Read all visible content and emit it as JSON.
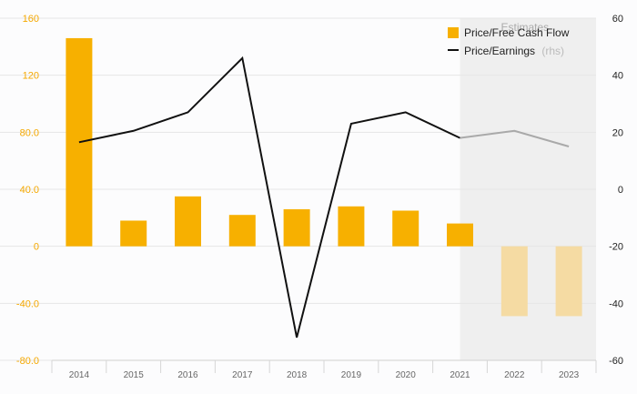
{
  "chart_data": {
    "type": "bar",
    "categories": [
      "2014",
      "2015",
      "2016",
      "2017",
      "2018",
      "2019",
      "2020",
      "2021",
      "2022",
      "2023"
    ],
    "series": [
      {
        "name": "Price/Free Cash Flow",
        "kind": "bar",
        "axis": "left",
        "values": [
          146,
          18,
          35,
          22,
          26,
          28,
          25,
          16,
          -49,
          -49
        ],
        "color": "#f7b000",
        "estimate_color": "#f5dba3"
      },
      {
        "name": "Price/Earnings",
        "rhs_note": "(rhs)",
        "kind": "line",
        "axis": "right",
        "values": [
          16.5,
          20.5,
          27,
          46,
          -52,
          23,
          27,
          18,
          20.5,
          15
        ],
        "color": "#111111",
        "estimate_color": "#a9a9a9"
      }
    ],
    "left_axis": {
      "ylim": [
        -80,
        160
      ],
      "ticks": [
        "160",
        "120",
        "80.0",
        "40.0",
        "0",
        "-40.0",
        "-80.0"
      ],
      "tick_values": [
        160,
        120,
        80,
        40,
        0,
        -40,
        -80
      ],
      "color": "#f5a800"
    },
    "right_axis": {
      "ylim": [
        -60,
        60
      ],
      "ticks": [
        "60",
        "40",
        "20",
        "0",
        "-20",
        "-40",
        "-60"
      ],
      "tick_values": [
        60,
        40,
        20,
        0,
        -20,
        -40,
        -60
      ]
    },
    "estimates": {
      "label": "Estimates",
      "from_category": "2021"
    },
    "legend_position": "top-right",
    "grid": true
  }
}
